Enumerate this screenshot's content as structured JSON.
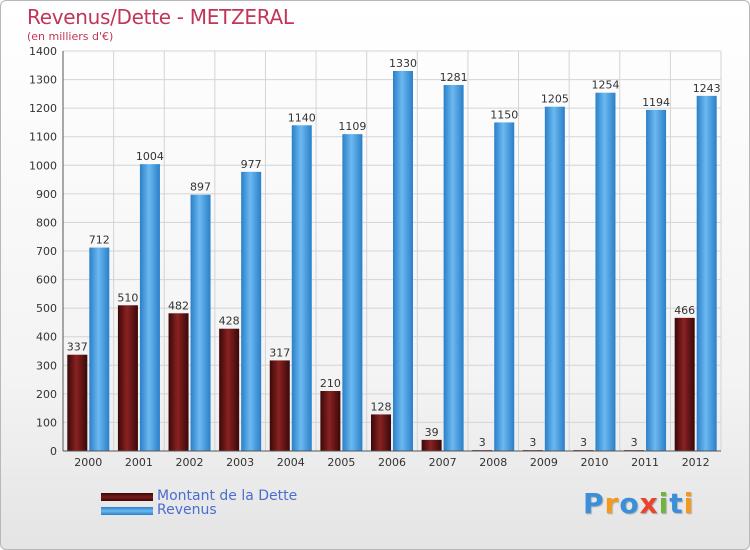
{
  "header": {
    "title": "Revenus/Dette - METZERAL",
    "subtitle": "(en milliers d'€)"
  },
  "chart_data": {
    "type": "bar",
    "title": "Revenus/Dette - METZERAL",
    "subtitle": "(en milliers d'€)",
    "xlabel": "",
    "ylabel": "",
    "ylim": [
      0,
      1400
    ],
    "yticks": [
      0,
      100,
      200,
      300,
      400,
      500,
      600,
      700,
      800,
      900,
      1000,
      1100,
      1200,
      1300,
      1400
    ],
    "grid": true,
    "legend_position": "bottom-left",
    "categories": [
      "2000",
      "2001",
      "2002",
      "2003",
      "2004",
      "2005",
      "2006",
      "2007",
      "2008",
      "2009",
      "2010",
      "2011",
      "2012"
    ],
    "series": [
      {
        "name": "Montant de la Dette",
        "color": "#7a1a1a",
        "values": [
          337,
          510,
          482,
          428,
          317,
          210,
          128,
          39,
          3,
          3,
          3,
          3,
          466
        ]
      },
      {
        "name": "Revenus",
        "color": "#4aa3e6",
        "values": [
          712,
          1004,
          897,
          977,
          1140,
          1109,
          1330,
          1281,
          1150,
          1205,
          1254,
          1194,
          1243
        ]
      }
    ]
  },
  "legend": {
    "items": [
      {
        "label": "Montant de la Dette",
        "color": "#7a1a1a"
      },
      {
        "label": "Revenus",
        "color": "#4aa3e6"
      }
    ]
  },
  "logo": {
    "text": "Proxiti",
    "letters": [
      {
        "ch": "P",
        "color": "#3a8fd8"
      },
      {
        "ch": "r",
        "color": "#f39a1e"
      },
      {
        "ch": "o",
        "color": "#3a8fd8"
      },
      {
        "ch": "x",
        "color": "#e8452c"
      },
      {
        "ch": "i",
        "color": "#6fb43f"
      },
      {
        "ch": "t",
        "color": "#3a8fd8"
      },
      {
        "ch": "i",
        "color": "#f39a1e"
      }
    ]
  }
}
